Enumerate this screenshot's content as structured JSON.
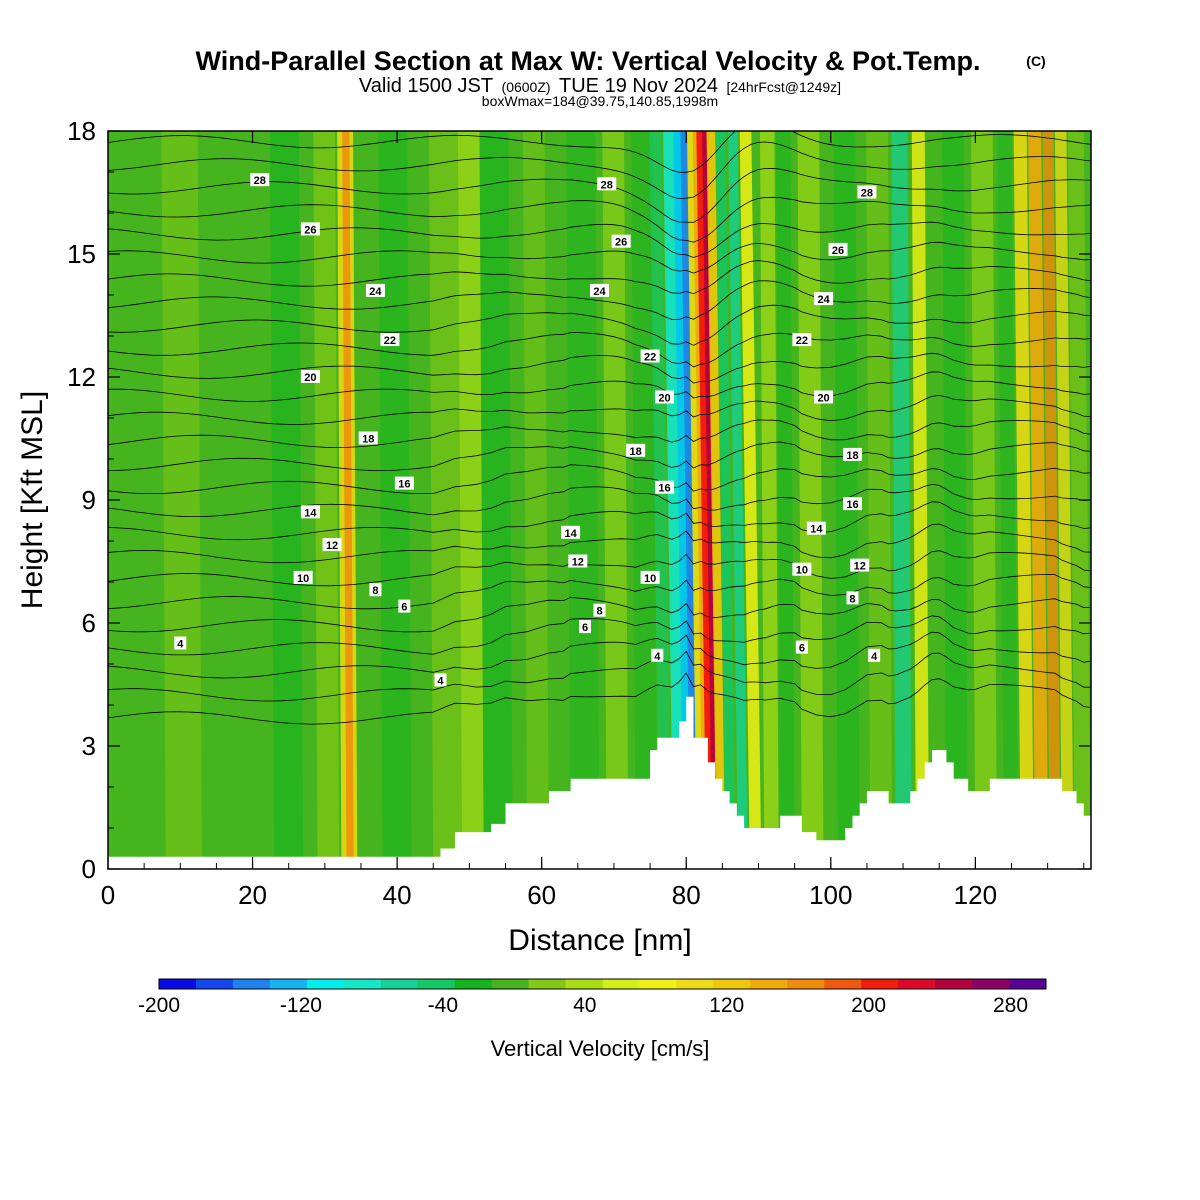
{
  "header": {
    "title": "Wind-Parallel Section at Max W: Vertical Velocity & Pot.Temp.",
    "copyright": "(C)",
    "valid_prefix": "Valid 1500 JST",
    "valid_utc": "(0600Z)",
    "valid_date": "TUE 19 Nov 2024",
    "forecast": "[24hrFcst@1249z]",
    "box_info": "boxWmax=184@39.75,140.85,1998m"
  },
  "colorbar": {
    "label": "Vertical Velocity [cm/s]",
    "colors": [
      "#0a0ae6",
      "#1446f0",
      "#1e82f0",
      "#14b4f0",
      "#00f0f0",
      "#14e6c8",
      "#14d296",
      "#14c864",
      "#14b41e",
      "#46b41e",
      "#82c814",
      "#aadc14",
      "#d2f014",
      "#f0f014",
      "#f0dc14",
      "#f0c80a",
      "#f0aa0a",
      "#f08c0a",
      "#f05a0a",
      "#f01e0a",
      "#dc0a28",
      "#b4003c",
      "#8c0064",
      "#5a0096"
    ],
    "tick_labels": [
      "-200",
      "-120",
      "-40",
      "40",
      "120",
      "200",
      "280"
    ]
  },
  "chart_data": {
    "type": "heatmap",
    "title": "Wind-Parallel Section at Max W: Vertical Velocity & Pot.Temp.",
    "xlabel": "Distance [nm]",
    "ylabel": "Height [Kft MSL]",
    "xlim": [
      0,
      136
    ],
    "ylim": [
      0,
      18
    ],
    "x_ticks": [
      "0",
      "20",
      "40",
      "60",
      "80",
      "100",
      "120"
    ],
    "y_ticks": [
      "0",
      "3",
      "6",
      "9",
      "12",
      "15",
      "18"
    ],
    "fill_variable": "Vertical Velocity [cm/s]",
    "fill_range": [
      -200,
      300
    ],
    "fill_step": 20,
    "terrain_profile": {
      "x": [
        0,
        45,
        46,
        48,
        51,
        53,
        55,
        56,
        58,
        61,
        63,
        64,
        66,
        70,
        73,
        75,
        76,
        78,
        79,
        80,
        81,
        82,
        83,
        84,
        85,
        86,
        87,
        88,
        90,
        91,
        93,
        95,
        96,
        98,
        99,
        100,
        102,
        103,
        104,
        105,
        107,
        108,
        109,
        111,
        112,
        113,
        114,
        115,
        116,
        117,
        119,
        120,
        122,
        131,
        132,
        134,
        135,
        136
      ],
      "y": [
        0.3,
        0.3,
        0.5,
        0.9,
        0.9,
        1.1,
        1.6,
        1.6,
        1.6,
        1.9,
        1.9,
        2.2,
        2.2,
        2.2,
        2.2,
        2.9,
        3.2,
        3.2,
        3.6,
        4.2,
        3.2,
        3.2,
        2.6,
        2.2,
        1.9,
        1.6,
        1.3,
        1.0,
        1.0,
        1.0,
        1.3,
        1.3,
        0.9,
        0.7,
        0.7,
        0.7,
        1.0,
        1.3,
        1.6,
        1.9,
        1.9,
        1.6,
        1.6,
        1.9,
        2.2,
        2.6,
        2.9,
        2.9,
        2.6,
        2.2,
        1.9,
        1.9,
        2.2,
        2.2,
        1.9,
        1.6,
        1.3,
        1.3
      ]
    },
    "isentrope_labels": [
      {
        "text": "28",
        "x": 21,
        "y": 16.8
      },
      {
        "text": "28",
        "x": 69,
        "y": 16.7
      },
      {
        "text": "28",
        "x": 105,
        "y": 16.5
      },
      {
        "text": "26",
        "x": 28,
        "y": 15.6
      },
      {
        "text": "26",
        "x": 71,
        "y": 15.3
      },
      {
        "text": "26",
        "x": 101,
        "y": 15.1
      },
      {
        "text": "24",
        "x": 37,
        "y": 14.1
      },
      {
        "text": "24",
        "x": 68,
        "y": 14.1
      },
      {
        "text": "24",
        "x": 99,
        "y": 13.9
      },
      {
        "text": "22",
        "x": 39,
        "y": 12.9
      },
      {
        "text": "22",
        "x": 75,
        "y": 12.5
      },
      {
        "text": "22",
        "x": 96,
        "y": 12.9
      },
      {
        "text": "20",
        "x": 28,
        "y": 12.0
      },
      {
        "text": "20",
        "x": 77,
        "y": 11.5
      },
      {
        "text": "20",
        "x": 99,
        "y": 11.5
      },
      {
        "text": "18",
        "x": 36,
        "y": 10.5
      },
      {
        "text": "18",
        "x": 73,
        "y": 10.2
      },
      {
        "text": "18",
        "x": 103,
        "y": 10.1
      },
      {
        "text": "16",
        "x": 41,
        "y": 9.4
      },
      {
        "text": "16",
        "x": 77,
        "y": 9.3
      },
      {
        "text": "16",
        "x": 103,
        "y": 8.9
      },
      {
        "text": "14",
        "x": 28,
        "y": 8.7
      },
      {
        "text": "14",
        "x": 64,
        "y": 8.2
      },
      {
        "text": "14",
        "x": 98,
        "y": 8.3
      },
      {
        "text": "12",
        "x": 31,
        "y": 7.9
      },
      {
        "text": "12",
        "x": 65,
        "y": 7.5
      },
      {
        "text": "12",
        "x": 104,
        "y": 7.4
      },
      {
        "text": "10",
        "x": 27,
        "y": 7.1
      },
      {
        "text": "10",
        "x": 75,
        "y": 7.1
      },
      {
        "text": "10",
        "x": 96,
        "y": 7.3
      },
      {
        "text": "8",
        "x": 37,
        "y": 6.8
      },
      {
        "text": "8",
        "x": 68,
        "y": 6.3
      },
      {
        "text": "8",
        "x": 103,
        "y": 6.6
      },
      {
        "text": "6",
        "x": 41,
        "y": 6.4
      },
      {
        "text": "6",
        "x": 66,
        "y": 5.9
      },
      {
        "text": "6",
        "x": 96,
        "y": 5.4
      },
      {
        "text": "4",
        "x": 10,
        "y": 5.5
      },
      {
        "text": "4",
        "x": 46,
        "y": 4.6
      },
      {
        "text": "4",
        "x": 76,
        "y": 5.2
      },
      {
        "text": "4",
        "x": 106,
        "y": 5.2
      }
    ],
    "features": [
      {
        "name": "mountain-wave updraft",
        "x": 82.5,
        "value_cm_s": 280
      },
      {
        "name": "mountain-wave downdraft",
        "x": 79.5,
        "value_cm_s": -140
      },
      {
        "name": "updraft band",
        "x": 130,
        "value_cm_s": 120
      },
      {
        "name": "updraft band",
        "x": 33,
        "value_cm_s": 110
      }
    ]
  }
}
